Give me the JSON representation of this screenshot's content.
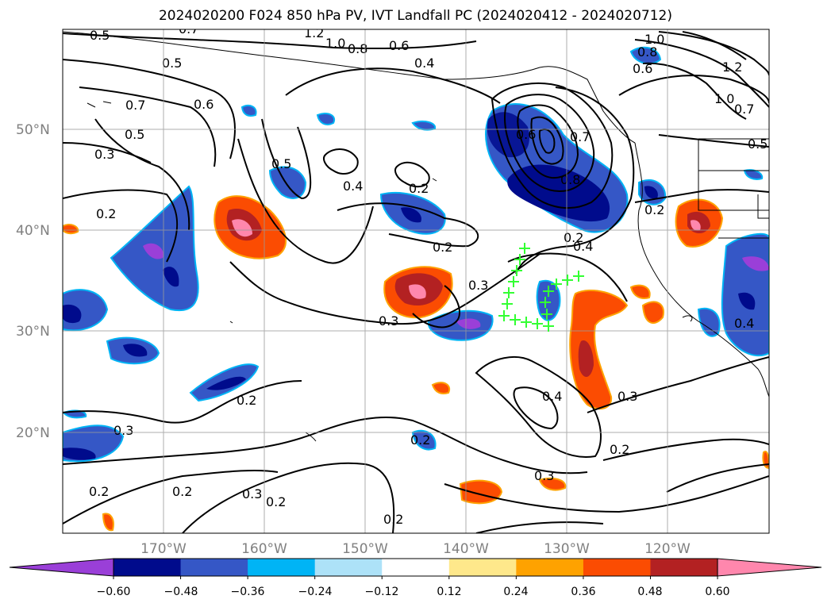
{
  "title": "2024020200 F024 850 hPa PV, IVT Landfall PC (2024020412 - 2024020712)",
  "map": {
    "lat_ticks": [
      "50°N",
      "40°N",
      "30°N",
      "20°N"
    ],
    "lon_ticks": [
      "170°W",
      "160°W",
      "150°W",
      "140°W",
      "130°W",
      "120°W"
    ],
    "grid": true,
    "landfall_marker": "plus",
    "landfall_marker_color": "#33ff33",
    "contour_color": "#000000",
    "contour_labels": [
      "0.5",
      "0.7",
      "1.2",
      "1.0",
      "0.8",
      "0.6",
      "0.4",
      "1.0",
      "0.8",
      "0.6",
      "1.2",
      "1.0",
      "0.7",
      "0.5",
      "0.5",
      "0.6",
      "0.7",
      "0.5",
      "0.3",
      "0.2",
      "0.5",
      "0.4",
      "0.2",
      "0.6",
      "0.7",
      "0.8",
      "0.2",
      "0.2",
      "0.4",
      "0.3",
      "0.3",
      "0.4",
      "0.4",
      "0.3",
      "0.2",
      "0.3",
      "0.2",
      "0.2",
      "0.3",
      "0.2",
      "0.2",
      "0.3",
      "0.2",
      "0.2",
      "0.2"
    ]
  },
  "colorbar": {
    "tick_labels": [
      "−0.60",
      "−0.48",
      "−0.36",
      "−0.24",
      "−0.12",
      "0.12",
      "0.24",
      "0.36",
      "0.48",
      "0.60"
    ],
    "colors": [
      "#9a3fd8",
      "#000b8c",
      "#3557c6",
      "#00b4f5",
      "#ade2f8",
      "#ffffff",
      "#fee88b",
      "#fea200",
      "#fb4c02",
      "#b32122",
      "#ff87ad"
    ]
  }
}
